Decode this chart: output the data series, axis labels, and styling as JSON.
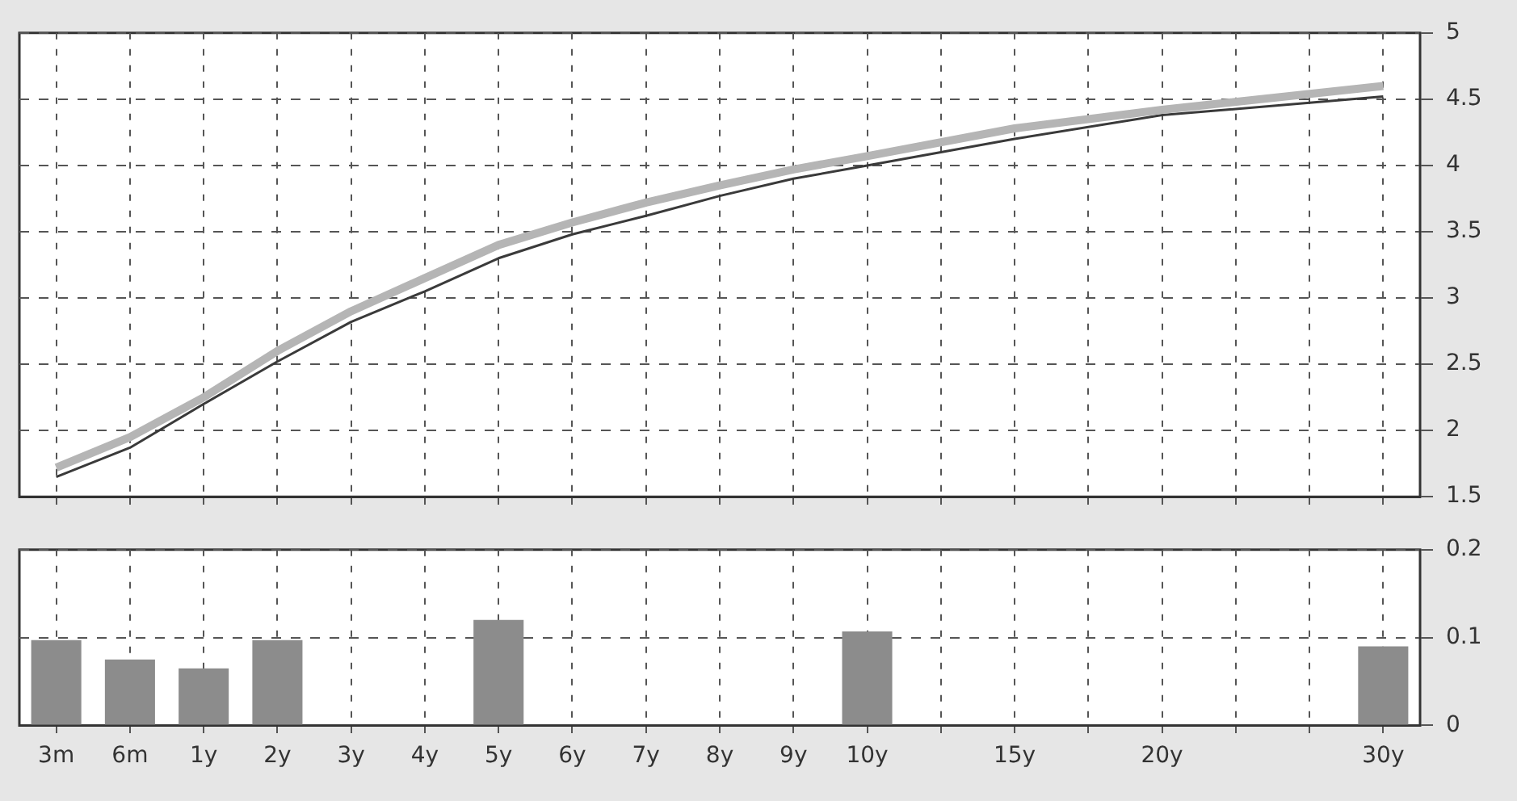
{
  "chart_data": [
    {
      "type": "line",
      "categories": [
        null,
        null,
        null,
        null,
        null,
        null,
        null,
        null,
        null,
        null,
        null,
        null,
        null,
        null,
        null,
        null,
        null,
        null,
        null
      ],
      "series": [
        {
          "color": "#b5b5b5",
          "values": [
            1.72,
            1.95,
            2.25,
            2.6,
            2.9,
            3.15,
            3.4,
            3.57,
            3.72,
            3.85,
            3.97,
            4.07,
            null,
            4.28,
            null,
            4.42,
            null,
            null,
            4.6
          ]
        },
        {
          "color": "#3a3a3a",
          "values": [
            1.65,
            1.87,
            2.2,
            2.52,
            2.82,
            3.05,
            3.3,
            3.48,
            3.62,
            3.77,
            3.9,
            4.0,
            null,
            4.2,
            null,
            4.38,
            null,
            null,
            4.52
          ]
        }
      ],
      "ylim": [
        1.5,
        5
      ],
      "yticks": [
        1.5,
        2,
        2.5,
        3,
        3.5,
        4,
        4.5,
        5
      ],
      "grid": true,
      "legend": false,
      "tick_labels": "y",
      "marker": "none",
      "line_style": "solid"
    },
    {
      "type": "bar",
      "categories": [
        "3m",
        "6m",
        "1y",
        "2y",
        "3y",
        "4y",
        "5y",
        "6y",
        "7y",
        "8y",
        "9y",
        "10y",
        null,
        "15y",
        null,
        "20y",
        null,
        null,
        "30y"
      ],
      "values": [
        0.097,
        0.075,
        0.065,
        0.097,
        null,
        null,
        0.12,
        null,
        null,
        null,
        null,
        0.107,
        null,
        null,
        null,
        null,
        null,
        null,
        0.09
      ],
      "color": "#8c8c8c",
      "ylim": [
        0,
        0.2
      ],
      "yticks": [
        0,
        0.1,
        0.2
      ],
      "grid": true,
      "legend": false
    }
  ]
}
